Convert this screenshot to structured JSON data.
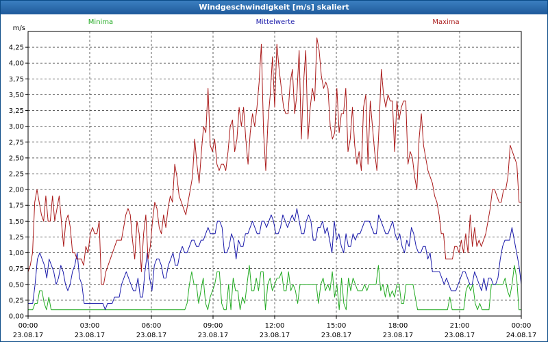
{
  "window": {
    "title": "Windgeschwindigkeit [m/s] skaliert"
  },
  "chart_data": {
    "type": "line",
    "title": "Windgeschwindigkeit [m/s] skaliert",
    "ylabel": "m/s",
    "xlabel": "",
    "ylim": [
      0,
      4.5
    ],
    "xlim": [
      0,
      24
    ],
    "grid": true,
    "y_ticks": [
      0,
      0.25,
      0.5,
      0.75,
      1.0,
      1.25,
      1.5,
      1.75,
      2.0,
      2.25,
      2.5,
      2.75,
      3.0,
      3.25,
      3.5,
      3.75,
      4.0,
      4.25
    ],
    "y_tick_labels": [
      "0,00",
      "0,25",
      "0,50",
      "0,75",
      "1,00",
      "1,25",
      "1,50",
      "1,75",
      "2,00",
      "2,25",
      "2,50",
      "2,75",
      "3,00",
      "3,25",
      "3,50",
      "3,75",
      "4,00",
      "4,25"
    ],
    "x_ticks": [
      {
        "time": "00:00",
        "date": "23.08.17"
      },
      {
        "time": "03:00",
        "date": "23.08.17"
      },
      {
        "time": "06:00",
        "date": "23.08.17"
      },
      {
        "time": "09:00",
        "date": "23.08.17"
      },
      {
        "time": "12:00",
        "date": "23.08.17"
      },
      {
        "time": "15:00",
        "date": "23.08.17"
      },
      {
        "time": "18:00",
        "date": "23.08.17"
      },
      {
        "time": "21:00",
        "date": "23.08.17"
      },
      {
        "time": "00:00",
        "date": "24.08.17"
      }
    ],
    "legend": {
      "placement": "top"
    },
    "series": [
      {
        "name": "Minima",
        "color": "#22aa22",
        "values": [
          0.1,
          0.1,
          0.1,
          0.2,
          0.2,
          0.4,
          0.4,
          0.2,
          0.1,
          0.3,
          0.1,
          0.1,
          0.1,
          0.1,
          0.1,
          0.1,
          0.1,
          0.1,
          0.1,
          0.1,
          0.1,
          0.1,
          0.1,
          0.1,
          0.1,
          0.1,
          0.1,
          0.1,
          0.1,
          0.1,
          0.1,
          0.1,
          0.1,
          0.1,
          0.1,
          0.1,
          0.1,
          0.1,
          0.1,
          0.1,
          0.1,
          0.1,
          0.1,
          0.1,
          0.1,
          0.1,
          0.1,
          0.1,
          0.1,
          0.1,
          0.1,
          0.1,
          0.1,
          0.1,
          0.1,
          0.1,
          0.1,
          0.1,
          0.1,
          0.1,
          0.1,
          0.1,
          0.1,
          0.1,
          0.1,
          0.1,
          0.1,
          0.1,
          0.1,
          0.2,
          0.5,
          0.7,
          0.5,
          0.5,
          0.2,
          0.4,
          0.6,
          0.2,
          0.1,
          0.3,
          0.4,
          0.5,
          0.7,
          0.7,
          0.2,
          0.1,
          0.1,
          0.5,
          0.1,
          0.6,
          0.4,
          0.4,
          0.1,
          0.3,
          0.2,
          0.5,
          0.8,
          0.4,
          0.4,
          0.6,
          0.4,
          0.7,
          0.7,
          0.1,
          0.5,
          0.6,
          0.4,
          0.5,
          0.6,
          0.6,
          0.7,
          0.4,
          0.4,
          0.7,
          0.4,
          0.5,
          0.4,
          0.2,
          0.5,
          0.5,
          0.5,
          0.5,
          0.5,
          0.5,
          0.5,
          0.5,
          0.2,
          0.5,
          0.6,
          0.4,
          0.5,
          0.4,
          0.7,
          0.3,
          0.5,
          0.1,
          0.6,
          0.2,
          0.1,
          0.6,
          0.4,
          0.6,
          0.5,
          0.4,
          0.4,
          0.4,
          0.5,
          0.4,
          0.5,
          0.5,
          0.5,
          0.5,
          0.8,
          0.4,
          0.5,
          0.3,
          0.5,
          0.3,
          0.4,
          0.3,
          0.5,
          0.5,
          0.2,
          0.2,
          0.5,
          0.5,
          0.5,
          0.5,
          0.3,
          0.1,
          0.1,
          0.1,
          0.1,
          0.1,
          0.1,
          0.1,
          0.1,
          0.1,
          0.1,
          0.1,
          0.1,
          0.1,
          0.1,
          0.3,
          0.1,
          0.1,
          0.1,
          0.1,
          0.1,
          0.1,
          0.4,
          0.5,
          0.4,
          0.5,
          0.2,
          0.1,
          0.2,
          0.1,
          0.1,
          0.1,
          0.1,
          0.5,
          0.5,
          0.5,
          0.5,
          0.5,
          0.5,
          0.6,
          0.4,
          0.3,
          0.5,
          0.8,
          0.6,
          0.1,
          0.1
        ]
      },
      {
        "name": "Mittelwerte",
        "color": "#1a1aaa",
        "values": [
          0.2,
          0.2,
          0.2,
          0.5,
          0.9,
          1.0,
          0.9,
          0.8,
          0.6,
          0.9,
          0.8,
          0.7,
          0.5,
          0.6,
          0.8,
          0.7,
          0.5,
          0.4,
          0.5,
          0.7,
          0.8,
          1.0,
          0.6,
          0.5,
          0.2,
          0.2,
          0.2,
          0.2,
          0.2,
          0.2,
          0.2,
          0.2,
          0.2,
          0.1,
          0.2,
          0.2,
          0.2,
          0.3,
          0.3,
          0.3,
          0.5,
          0.6,
          0.7,
          0.6,
          0.5,
          0.4,
          0.4,
          0.6,
          0.3,
          0.3,
          0.7,
          1.0,
          0.6,
          0.4,
          0.8,
          0.9,
          0.9,
          0.8,
          0.6,
          0.6,
          0.8,
          0.9,
          1.0,
          0.8,
          0.8,
          1.0,
          1.1,
          1.0,
          1.0,
          1.1,
          1.2,
          1.2,
          1.1,
          1.1,
          1.2,
          1.2,
          1.3,
          1.4,
          1.3,
          1.3,
          1.3,
          1.5,
          1.5,
          1.4,
          1.0,
          1.0,
          1.1,
          1.3,
          1.2,
          0.9,
          1.2,
          1.1,
          1.1,
          1.3,
          1.3,
          1.4,
          1.5,
          1.4,
          1.3,
          1.3,
          1.5,
          1.5,
          1.4,
          1.5,
          1.6,
          1.5,
          1.3,
          1.3,
          1.4,
          1.6,
          1.5,
          1.4,
          1.5,
          1.6,
          1.5,
          1.7,
          1.5,
          1.3,
          1.3,
          1.5,
          1.6,
          1.5,
          1.2,
          1.2,
          1.4,
          1.4,
          1.5,
          1.3,
          1.4,
          1.2,
          1.0,
          1.5,
          1.2,
          1.3,
          1.1,
          1.0,
          1.3,
          1.1,
          1.1,
          1.3,
          1.2,
          1.3,
          1.3,
          1.4,
          1.5,
          1.5,
          1.5,
          1.4,
          1.3,
          1.3,
          1.6,
          1.5,
          1.4,
          1.3,
          1.3,
          1.4,
          1.5,
          1.3,
          1.2,
          1.3,
          1.1,
          1.0,
          1.2,
          1.1,
          1.4,
          1.3,
          1.1,
          1.0,
          1.0,
          1.1,
          1.1,
          0.9,
          1.0,
          0.7,
          0.7,
          0.7,
          0.7,
          0.6,
          0.5,
          0.6,
          0.5,
          0.4,
          0.4,
          0.4,
          0.5,
          0.6,
          0.7,
          0.7,
          0.6,
          0.5,
          0.5,
          0.7,
          0.6,
          0.5,
          0.4,
          0.6,
          0.4,
          0.6,
          0.6,
          0.5,
          0.5,
          0.6,
          0.9,
          1.1,
          1.2,
          1.2,
          1.2,
          1.4,
          1.2,
          1.0,
          0.8,
          0.5
        ]
      },
      {
        "name": "Maxima",
        "color": "#aa1a1a",
        "values": [
          0.7,
          0.8,
          1.0,
          1.8,
          2.0,
          1.8,
          1.6,
          1.5,
          1.9,
          1.5,
          1.5,
          1.9,
          1.5,
          1.7,
          1.9,
          1.5,
          1.1,
          1.5,
          1.6,
          1.4,
          1.0,
          1.0,
          0.9,
          0.9,
          0.9,
          0.8,
          1.1,
          1.0,
          1.3,
          1.4,
          1.3,
          1.3,
          1.5,
          0.5,
          0.5,
          0.7,
          0.8,
          0.9,
          1.0,
          1.1,
          1.2,
          1.2,
          1.2,
          1.4,
          1.6,
          1.7,
          1.6,
          1.2,
          0.9,
          1.5,
          1.3,
          0.7,
          1.3,
          1.6,
          0.9,
          1.1,
          1.5,
          1.8,
          1.7,
          1.4,
          1.3,
          1.6,
          1.4,
          1.7,
          1.9,
          1.8,
          2.4,
          2.2,
          1.9,
          1.8,
          1.7,
          1.6,
          1.8,
          2.0,
          2.2,
          2.8,
          2.4,
          2.1,
          2.6,
          3.0,
          2.9,
          3.6,
          2.7,
          2.6,
          2.8,
          2.4,
          2.3,
          2.4,
          2.4,
          2.3,
          2.6,
          3.0,
          3.1,
          2.6,
          2.8,
          3.3,
          3.0,
          3.3,
          2.8,
          2.4,
          2.9,
          3.2,
          3.0,
          3.3,
          3.7,
          4.3,
          2.9,
          2.3,
          3.1,
          3.5,
          4.1,
          3.3,
          4.3,
          3.9,
          3.6,
          3.3,
          3.2,
          3.2,
          3.7,
          3.9,
          3.2,
          3.5,
          4.2,
          2.8,
          3.7,
          4.2,
          2.8,
          3.3,
          3.6,
          3.4,
          4.4,
          4.2,
          3.8,
          3.6,
          3.7,
          3.6,
          3.0,
          2.8,
          2.9,
          3.6,
          2.9,
          3.2,
          3.2,
          3.6,
          2.6,
          2.8,
          3.3,
          2.7,
          2.4,
          2.6,
          2.3,
          3.3,
          3.5,
          2.4,
          3.4,
          3.0,
          2.6,
          2.3,
          3.0,
          3.9,
          3.5,
          3.3,
          3.5,
          3.4,
          3.4,
          2.6,
          3.4,
          3.1,
          3.3,
          3.4,
          3.4,
          2.4,
          2.6,
          2.5,
          2.2,
          2.0,
          2.8,
          3.2,
          2.7,
          2.5,
          2.3,
          2.2,
          2.1,
          1.9,
          1.8,
          1.6,
          1.3,
          1.3,
          0.9,
          0.9,
          0.9,
          0.9,
          1.1,
          1.1,
          1.0,
          1.2,
          1.0,
          1.3,
          1.0,
          1.6,
          1.1,
          1.4,
          1.1,
          1.2,
          1.1,
          1.2,
          1.3,
          1.5,
          1.7,
          2.0,
          2.0,
          1.9,
          1.8,
          1.8,
          2.0,
          2.0,
          2.2,
          2.7,
          2.6,
          2.5,
          2.4,
          1.8,
          1.8
        ]
      }
    ]
  }
}
